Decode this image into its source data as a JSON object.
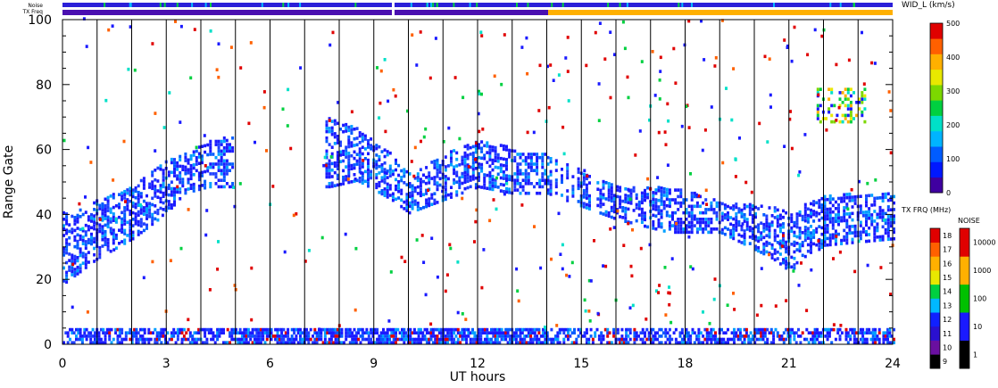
{
  "status_bars": {
    "noise_label": "Noise",
    "txfreq_label": "TX Freq",
    "noise_color": "#2b1fd8",
    "txfreq_left_color": "#4a0fb0",
    "txfreq_right_color": "#ffb000"
  },
  "chart_data": {
    "type": "heatmap",
    "xlabel": "UT hours",
    "ylabel": "Range Gate",
    "xlim": [
      0,
      24
    ],
    "ylim": [
      0,
      100
    ],
    "x_ticks": [
      0,
      3,
      6,
      9,
      12,
      15,
      18,
      21,
      24
    ],
    "y_ticks": [
      0,
      20,
      40,
      60,
      80,
      100
    ],
    "hour_grid_lines": [
      1,
      2,
      3,
      4,
      5,
      6,
      7,
      8,
      9,
      10,
      11,
      12,
      13,
      14,
      15,
      16,
      17,
      18,
      19,
      20,
      21,
      22,
      23
    ],
    "series": [
      {
        "name": "WID_L (km/s)",
        "description_points": [
          {
            "hour": 0.0,
            "gate_low": 18,
            "gate_high": 40
          },
          {
            "hour": 1.0,
            "gate_low": 26,
            "gate_high": 44
          },
          {
            "hour": 2.0,
            "gate_low": 32,
            "gate_high": 48
          },
          {
            "hour": 3.0,
            "gate_low": 40,
            "gate_high": 56
          },
          {
            "hour": 3.5,
            "gate_low": 46,
            "gate_high": 58
          },
          {
            "hour": 4.2,
            "gate_low": 48,
            "gate_high": 62
          },
          {
            "hour": 7.7,
            "gate_low": 48,
            "gate_high": 70
          },
          {
            "hour": 8.5,
            "gate_low": 50,
            "gate_high": 66
          },
          {
            "hour": 9.5,
            "gate_low": 44,
            "gate_high": 58
          },
          {
            "hour": 10.0,
            "gate_low": 40,
            "gate_high": 52
          },
          {
            "hour": 11.0,
            "gate_low": 44,
            "gate_high": 58
          },
          {
            "hour": 12.0,
            "gate_low": 48,
            "gate_high": 62
          },
          {
            "hour": 13.0,
            "gate_low": 46,
            "gate_high": 60
          },
          {
            "hour": 14.0,
            "gate_low": 46,
            "gate_high": 58
          },
          {
            "hour": 16.0,
            "gate_low": 38,
            "gate_high": 48
          },
          {
            "hour": 17.5,
            "gate_low": 34,
            "gate_high": 48
          },
          {
            "hour": 19.0,
            "gate_low": 34,
            "gate_high": 44
          },
          {
            "hour": 20.5,
            "gate_low": 26,
            "gate_high": 42
          },
          {
            "hour": 21.0,
            "gate_low": 22,
            "gate_high": 40
          },
          {
            "hour": 22.0,
            "gate_low": 30,
            "gate_high": 46
          },
          {
            "hour": 24.0,
            "gate_low": 32,
            "gate_high": 46
          }
        ],
        "upper_patch": {
          "hour_start": 21.8,
          "hour_end": 23.2,
          "gate_low": 68,
          "gate_high": 78
        },
        "ground_band": {
          "hour_start": 0,
          "hour_end": 24,
          "gate_low": 0,
          "gate_high": 4
        }
      }
    ]
  },
  "colorbar_width": {
    "title": "WID_L (km/s)",
    "tick_labels": [
      "500",
      "400",
      "300",
      "200",
      "100",
      "0"
    ],
    "range": [
      0,
      500
    ],
    "colors": [
      "#3f00a0",
      "#0018ff",
      "#005cff",
      "#00b4ff",
      "#00e0c8",
      "#00d040",
      "#7cd800",
      "#e8e800",
      "#ffb000",
      "#ff6000",
      "#e00000"
    ]
  },
  "colorbar_txfreq": {
    "title": "TX FRQ (MHz)",
    "tick_labels": [
      "18",
      "17",
      "16",
      "15",
      "14",
      "13",
      "12",
      "11",
      "10",
      "9"
    ],
    "colors": [
      "#000000",
      "#6a0fa0",
      "#2a10d0",
      "#1020ff",
      "#00b8ff",
      "#00d040",
      "#e8e800",
      "#ffb000",
      "#ff6000",
      "#e00000"
    ]
  },
  "colorbar_noise": {
    "title": "NOISE",
    "tick_labels": [
      "10000",
      "1000",
      "100",
      "10",
      "1"
    ],
    "colors": [
      "#000000",
      "#1a1aff",
      "#00c000",
      "#ffb000",
      "#e00000"
    ]
  }
}
